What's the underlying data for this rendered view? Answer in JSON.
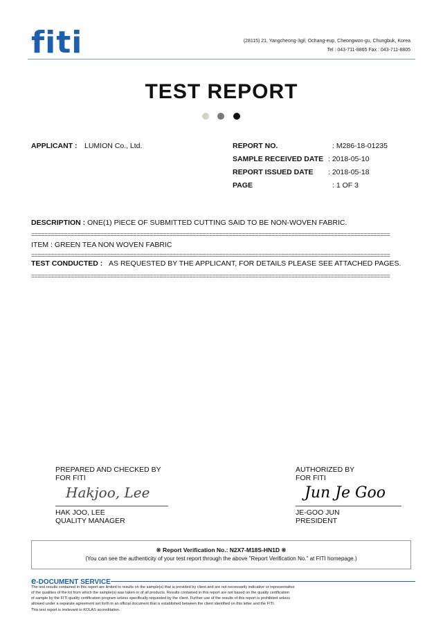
{
  "header": {
    "logo_text": "FITI",
    "address": "(28115) 21, Yangcheong-3gil, Ochang-eup, Cheongwon-gu, Chungbuk, Korea",
    "contact": "Tel : 043-711-8865    Fax : 043-711-8805",
    "accent_color": "#1d5fae"
  },
  "title": "TEST REPORT",
  "dots": [
    "#d8d2c0",
    "#7a7a7a",
    "#111111"
  ],
  "applicant": {
    "label": "APPLICANT :",
    "value": "LUMION Co., Ltd."
  },
  "info": [
    {
      "label": "REPORT NO.",
      "value": ": M286-18-01235"
    },
    {
      "label": "SAMPLE RECEIVED DATE",
      "value": ": 2018-05-10"
    },
    {
      "label": "REPORT ISSUED DATE",
      "value": ": 2018-05-18"
    },
    {
      "label": "PAGE",
      "value": ": 1 OF 3"
    }
  ],
  "description": {
    "label": "DESCRIPTION :",
    "value": "ONE(1) PIECE OF SUBMITTED CUTTING SAID TO BE NON-WOVEN FABRIC."
  },
  "separator": "=============================================================================================================",
  "item": "ITEM : GREEN TEA NON WOVEN FABRIC",
  "test_conducted": {
    "label": "TEST CONDUCTED :",
    "value": "AS REQUESTED BY THE APPLICANT, FOR DETAILS PLEASE SEE ATTACHED PAGES."
  },
  "prepared": {
    "line1": "PREPARED AND CHECKED BY",
    "line2": "FOR FITI",
    "signature": "Hakjoo, Lee",
    "name": "HAK JOO, LEE",
    "role": "QUALITY MANAGER"
  },
  "authorized": {
    "line1": "AUTHORIZED BY",
    "line2": "FOR FITI",
    "signature": "Jun Je Goo",
    "name": "JE-GOO JUN",
    "role": "PRESIDENT"
  },
  "verification": {
    "line1": "※ Report Verification No.: N2X7-M18S-HN1D ※",
    "line2": "(You can see the authenticity of your test report through the above \"Report Verification No.\" at FITI homepage.)"
  },
  "edoc": {
    "e": "e",
    "title": "-DOCUMENT SERVICE",
    "lines": [
      "The test results contained in this report are limited to results on the sample(s) that is provided by client and are not necessarily indicative or representative",
      "of the qualities of the lot from which the sample(s) was taken or of all products. Results contained in this report are not based on the quality certification",
      "of sample by the FITI quality certification program unless specifically requested by the client. Further use of the results of this report is prohibited unless",
      "allowed under a separate agreement set forth in an official document that is established between the client identified on this letter and the FITI.",
      "This test report is irrelevant to KOLAS accreditation."
    ]
  }
}
